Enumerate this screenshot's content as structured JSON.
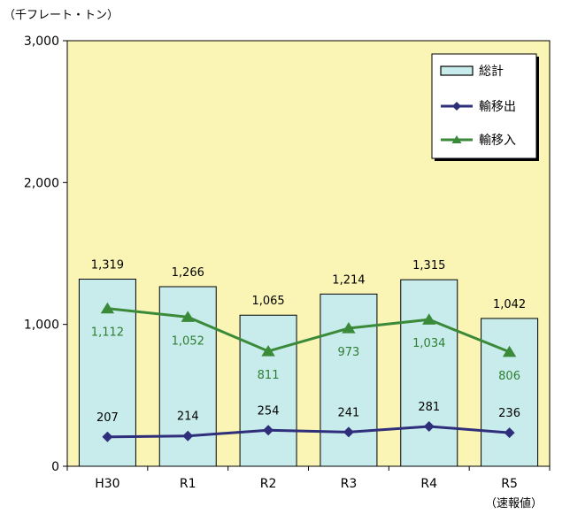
{
  "unit_label": "（千フレート・トン）",
  "footnote": "（速報値）",
  "colors": {
    "plot_bg": "#FAF5B4",
    "bar_fill": "#C8ECEC",
    "bar_stroke": "#000000",
    "export_line": "#2E2E7A",
    "import_line": "#3A8A3A",
    "import_label": "#2E7D32",
    "text": "#000000"
  },
  "chart_data": {
    "type": "bar",
    "categories": [
      "H30",
      "R1",
      "R2",
      "R3",
      "R4",
      "R5"
    ],
    "ylim": [
      0,
      3000
    ],
    "yticks": [
      "0",
      "1,000",
      "2,000",
      "3,000"
    ],
    "ytick_values": [
      0,
      1000,
      2000,
      3000
    ],
    "grid": false,
    "legend_position": "top-right",
    "series": [
      {
        "name": "総計",
        "type": "bar",
        "values": [
          1319,
          1266,
          1065,
          1214,
          1315,
          1042
        ],
        "labels": [
          "1,319",
          "1,266",
          "1,065",
          "1,214",
          "1,315",
          "1,042"
        ],
        "icon": "bar-swatch"
      },
      {
        "name": "輸移出",
        "type": "line",
        "marker": "diamond",
        "values": [
          207,
          214,
          254,
          241,
          281,
          236
        ],
        "labels": [
          "207",
          "214",
          "254",
          "241",
          "281",
          "236"
        ],
        "icon": "diamond-line"
      },
      {
        "name": "輸移入",
        "type": "line",
        "marker": "triangle",
        "values": [
          1112,
          1052,
          811,
          973,
          1034,
          806
        ],
        "labels": [
          "1,112",
          "1,052",
          "811",
          "973",
          "1,034",
          "806"
        ],
        "icon": "triangle-line"
      }
    ]
  }
}
